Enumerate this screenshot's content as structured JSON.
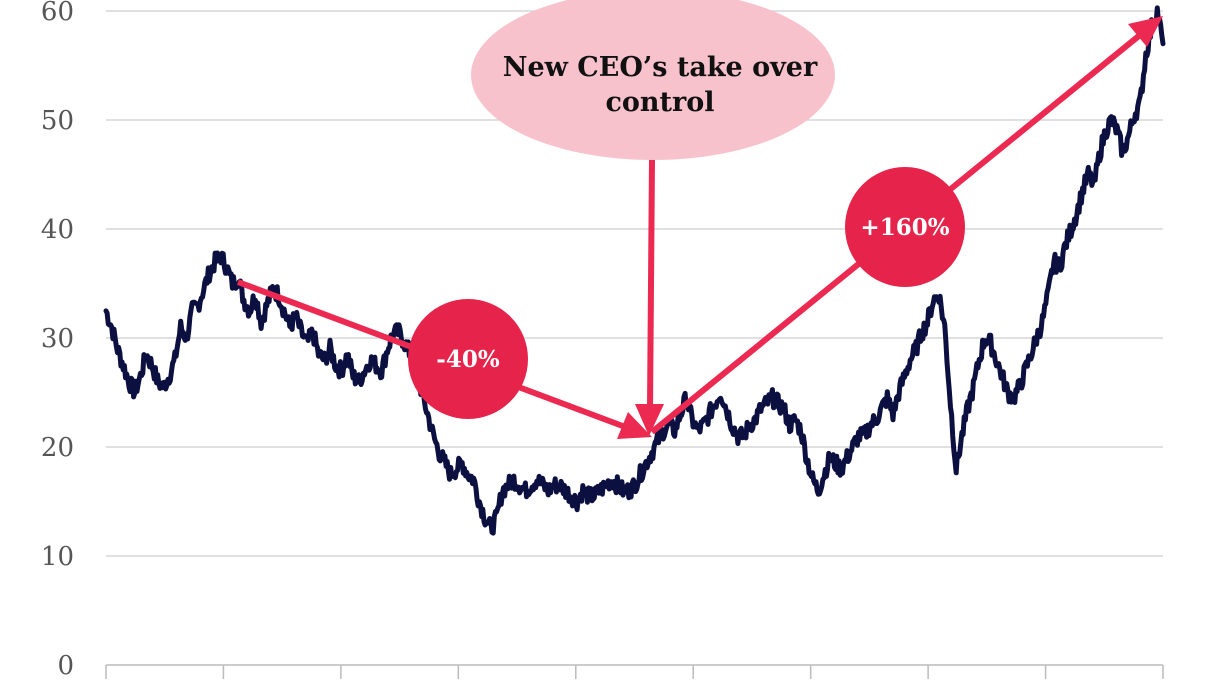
{
  "chart_data": {
    "type": "line",
    "title": "",
    "xlabel": "",
    "ylabel": "",
    "ylim": [
      0,
      60
    ],
    "yticks": [
      0,
      10,
      20,
      30,
      40,
      50,
      60
    ],
    "x_tick_count": 9,
    "grid": true,
    "series": [
      {
        "values": [
          32.5,
          31,
          29,
          27.5,
          26,
          25,
          26.5,
          28.5,
          27.5,
          26,
          25.5,
          26.5,
          28,
          31,
          30,
          32.5,
          33,
          34.5,
          36,
          37,
          37.5,
          36.5,
          35,
          35.5,
          33.5,
          32.5,
          34,
          31.5,
          33,
          34.5,
          34,
          32.5,
          31,
          32,
          30.5,
          29.5,
          30.5,
          28.5,
          28,
          29,
          27.5,
          27,
          28.5,
          26.5,
          26,
          27,
          28,
          27.5,
          27,
          29,
          30.5,
          30.5,
          29.5,
          28.5,
          27,
          25,
          23,
          21,
          19.5,
          18.5,
          17.5,
          18,
          18.5,
          17.5,
          17,
          15,
          13.5,
          12.5,
          13.5,
          16,
          16.5,
          17,
          16.5,
          16,
          16.5,
          17,
          16.5,
          16,
          16.5,
          16.5,
          16,
          15.5,
          15,
          16,
          15.5,
          15.5,
          16,
          16.5,
          17,
          16.5,
          16,
          16,
          16.5,
          17.5,
          18.5,
          19.5,
          20.5,
          21.5,
          22,
          21.5,
          23,
          24.5,
          22.5,
          21.5,
          22,
          23,
          24,
          25,
          23.5,
          22,
          21,
          21,
          22,
          22.5,
          23.5,
          24,
          24.5,
          24,
          23.5,
          22,
          22.5,
          21.5,
          19,
          17,
          16,
          17.5,
          19,
          18.5,
          18,
          19,
          20,
          21,
          21,
          22,
          22.5,
          23.5,
          24.5,
          23,
          25,
          26.5,
          28,
          29,
          30.5,
          31.5,
          33.5,
          34,
          31,
          24,
          18,
          21,
          23.5,
          25.5,
          28,
          30,
          29.5,
          28,
          26.5,
          25,
          24.5,
          25.5,
          27,
          28.5,
          30,
          31.5,
          34,
          37,
          36.5,
          38.5,
          40,
          41.5,
          43.5,
          45,
          44,
          47,
          49,
          50,
          49,
          47,
          48.5,
          50.5,
          51.5,
          56,
          58.5,
          60,
          57
        ]
      }
    ],
    "annotations": {
      "ceo_bubble": [
        "New CEO’s take over",
        "control"
      ],
      "decline_badge": "-40%",
      "rise_badge": "+160%"
    },
    "colors": {
      "line": "#0c1040",
      "arrow": "#ec2950",
      "badge": "#e6234a",
      "bubble": "#f8c2cd"
    }
  }
}
